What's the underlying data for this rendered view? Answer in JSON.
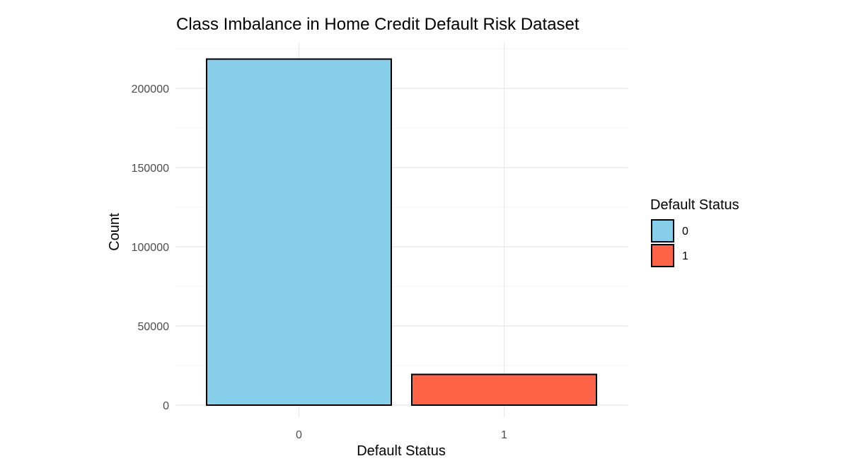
{
  "chart_data": {
    "type": "bar",
    "title": "Class Imbalance in Home Credit Default Risk Dataset",
    "xlabel": "Default Status",
    "ylabel": "Count",
    "categories": [
      "0",
      "1"
    ],
    "values": [
      218500,
      19400
    ],
    "colors": [
      "#87CEEB",
      "#FF6347"
    ],
    "bar_outline_color": "#000000",
    "ylim": [
      0,
      225000
    ],
    "y_ticks": [
      0,
      50000,
      100000,
      150000,
      200000
    ],
    "y_tick_labels": [
      "0",
      "50000",
      "100000",
      "150000",
      "200000"
    ],
    "grid": true,
    "legend": {
      "title": "Default Status",
      "position": "right",
      "entries": [
        {
          "label": "0",
          "color": "#87CEEB"
        },
        {
          "label": "1",
          "color": "#FF6347"
        }
      ]
    }
  }
}
